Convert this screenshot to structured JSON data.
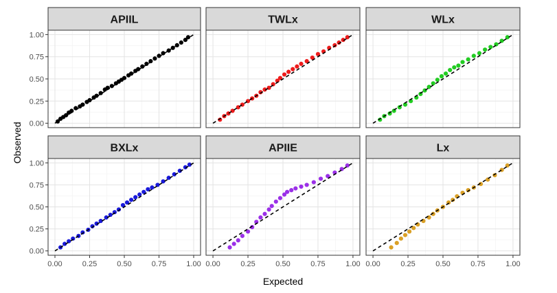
{
  "chart_data": {
    "type": "scatter",
    "xlabel": "Expected",
    "ylabel": "Observed",
    "xlim": [
      0,
      1
    ],
    "ylim": [
      0,
      1
    ],
    "x_ticks": [
      "0.00",
      "0.25",
      "0.50",
      "0.75",
      "1.00"
    ],
    "y_ticks": [
      "0.00",
      "0.25",
      "0.50",
      "0.75",
      "1.00"
    ],
    "grid": true,
    "reference_line": "y = x, dashed",
    "panels": [
      {
        "name": "APIIL",
        "color": "#000000",
        "x": [
          0.02,
          0.04,
          0.06,
          0.08,
          0.1,
          0.12,
          0.15,
          0.18,
          0.2,
          0.23,
          0.25,
          0.28,
          0.3,
          0.33,
          0.36,
          0.38,
          0.41,
          0.44,
          0.46,
          0.48,
          0.5,
          0.53,
          0.55,
          0.58,
          0.6,
          0.63,
          0.66,
          0.69,
          0.72,
          0.75,
          0.78,
          0.82,
          0.85,
          0.88,
          0.91,
          0.94,
          0.96
        ],
        "y": [
          0.02,
          0.05,
          0.07,
          0.09,
          0.12,
          0.14,
          0.17,
          0.19,
          0.21,
          0.24,
          0.26,
          0.29,
          0.31,
          0.34,
          0.38,
          0.4,
          0.42,
          0.45,
          0.47,
          0.49,
          0.51,
          0.54,
          0.56,
          0.59,
          0.61,
          0.64,
          0.67,
          0.7,
          0.73,
          0.76,
          0.79,
          0.82,
          0.85,
          0.88,
          0.91,
          0.94,
          0.97
        ]
      },
      {
        "name": "TWLx",
        "color": "#ee1c1c",
        "x": [
          0.05,
          0.08,
          0.11,
          0.14,
          0.18,
          0.21,
          0.25,
          0.28,
          0.31,
          0.34,
          0.37,
          0.4,
          0.43,
          0.46,
          0.48,
          0.51,
          0.54,
          0.57,
          0.6,
          0.63,
          0.67,
          0.71,
          0.75,
          0.79,
          0.83,
          0.87,
          0.9,
          0.93,
          0.96
        ],
        "y": [
          0.04,
          0.08,
          0.11,
          0.14,
          0.18,
          0.21,
          0.25,
          0.28,
          0.31,
          0.35,
          0.38,
          0.4,
          0.44,
          0.48,
          0.51,
          0.55,
          0.58,
          0.61,
          0.64,
          0.67,
          0.7,
          0.74,
          0.78,
          0.81,
          0.85,
          0.88,
          0.91,
          0.94,
          0.97
        ]
      },
      {
        "name": "WLx",
        "color": "#22cc22",
        "x": [
          0.05,
          0.08,
          0.12,
          0.15,
          0.19,
          0.23,
          0.27,
          0.31,
          0.34,
          0.37,
          0.4,
          0.43,
          0.46,
          0.49,
          0.52,
          0.55,
          0.58,
          0.61,
          0.64,
          0.68,
          0.72,
          0.76,
          0.8,
          0.84,
          0.88,
          0.92,
          0.96
        ],
        "y": [
          0.04,
          0.08,
          0.11,
          0.14,
          0.18,
          0.21,
          0.25,
          0.29,
          0.33,
          0.37,
          0.41,
          0.45,
          0.49,
          0.53,
          0.56,
          0.6,
          0.63,
          0.65,
          0.69,
          0.72,
          0.76,
          0.79,
          0.83,
          0.86,
          0.89,
          0.93,
          0.97
        ]
      },
      {
        "name": "BXLx",
        "color": "#1a1adb",
        "x": [
          0.04,
          0.07,
          0.1,
          0.13,
          0.17,
          0.2,
          0.24,
          0.27,
          0.3,
          0.33,
          0.37,
          0.4,
          0.43,
          0.46,
          0.49,
          0.52,
          0.55,
          0.58,
          0.61,
          0.64,
          0.67,
          0.7,
          0.74,
          0.78,
          0.82,
          0.86,
          0.9,
          0.94,
          0.97
        ],
        "y": [
          0.04,
          0.08,
          0.11,
          0.14,
          0.17,
          0.21,
          0.24,
          0.28,
          0.31,
          0.34,
          0.38,
          0.41,
          0.44,
          0.47,
          0.52,
          0.55,
          0.58,
          0.61,
          0.64,
          0.67,
          0.7,
          0.72,
          0.75,
          0.79,
          0.83,
          0.87,
          0.91,
          0.95,
          0.98
        ]
      },
      {
        "name": "APIIE",
        "color": "#9b30e8",
        "x": [
          0.12,
          0.15,
          0.18,
          0.21,
          0.25,
          0.28,
          0.31,
          0.34,
          0.37,
          0.4,
          0.42,
          0.45,
          0.48,
          0.51,
          0.53,
          0.56,
          0.59,
          0.63,
          0.67,
          0.72,
          0.77,
          0.82,
          0.87,
          0.92,
          0.96
        ],
        "y": [
          0.04,
          0.08,
          0.12,
          0.17,
          0.22,
          0.27,
          0.33,
          0.38,
          0.42,
          0.47,
          0.51,
          0.56,
          0.6,
          0.64,
          0.67,
          0.69,
          0.71,
          0.73,
          0.75,
          0.78,
          0.82,
          0.85,
          0.89,
          0.93,
          0.97
        ]
      },
      {
        "name": "Lx",
        "color": "#daa026",
        "x": [
          0.13,
          0.17,
          0.2,
          0.23,
          0.26,
          0.29,
          0.32,
          0.36,
          0.4,
          0.43,
          0.46,
          0.5,
          0.54,
          0.57,
          0.6,
          0.64,
          0.68,
          0.72,
          0.77,
          0.82,
          0.87,
          0.92,
          0.96
        ],
        "y": [
          0.04,
          0.09,
          0.14,
          0.18,
          0.22,
          0.26,
          0.3,
          0.34,
          0.38,
          0.42,
          0.46,
          0.5,
          0.55,
          0.58,
          0.62,
          0.66,
          0.69,
          0.72,
          0.76,
          0.81,
          0.86,
          0.92,
          0.97
        ]
      }
    ]
  }
}
